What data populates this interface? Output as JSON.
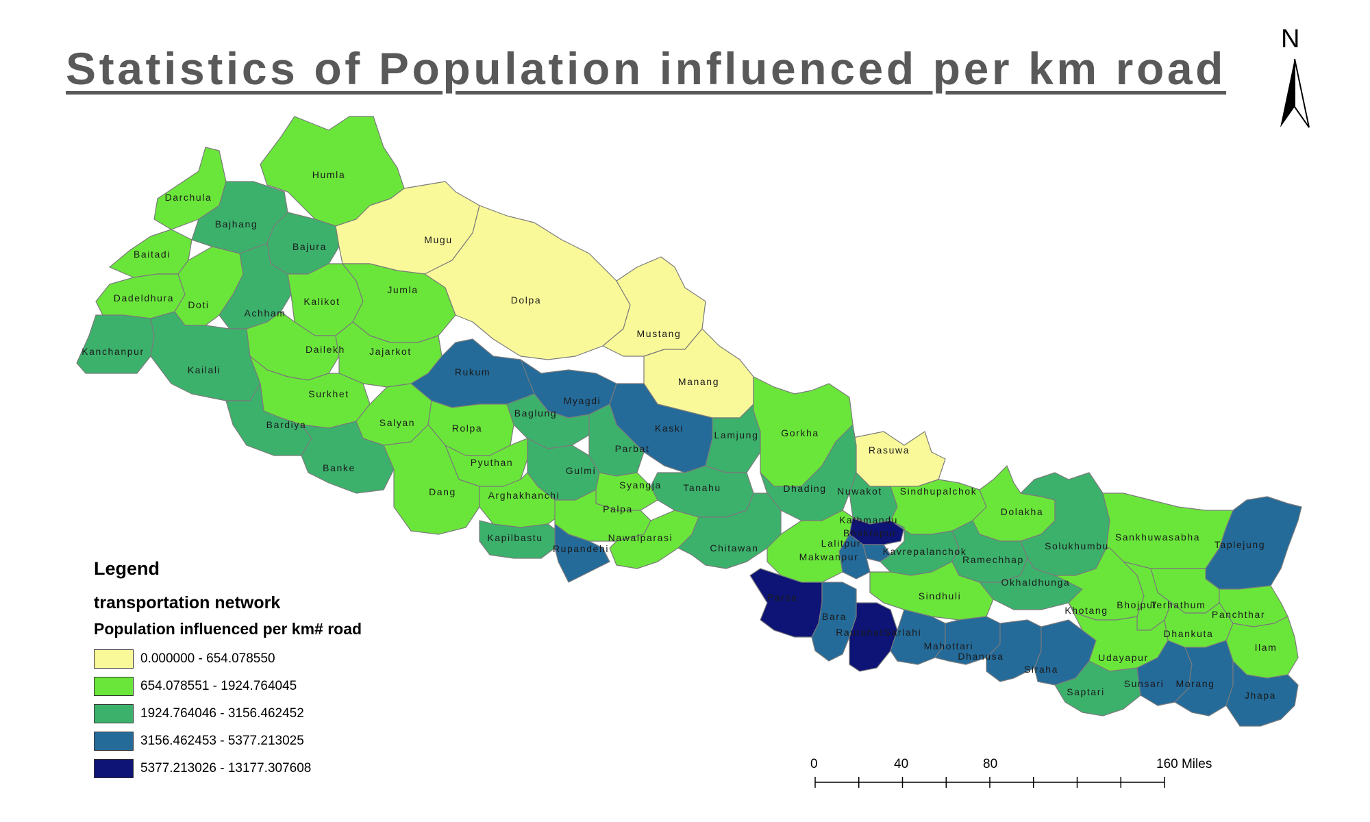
{
  "title": "Statistics of Population influenced per km road",
  "north_label": "N",
  "legend": {
    "heading": "Legend",
    "layer": "transportation network",
    "field": "Population influenced per km# road",
    "classes": [
      {
        "label": "0.000000 - 654.078550",
        "color": "#faf99a"
      },
      {
        "label": "654.078551 - 1924.764045",
        "color": "#6ae63a"
      },
      {
        "label": "1924.764046 - 3156.462452",
        "color": "#3cb16c"
      },
      {
        "label": "3156.462453 - 5377.213025",
        "color": "#246b9a"
      },
      {
        "label": "5377.213026 - 13177.307608",
        "color": "#0d1476"
      }
    ]
  },
  "scale": {
    "ticks": [
      "0",
      "40",
      "80",
      "160 Miles"
    ]
  },
  "districts": [
    {
      "name": "Humla",
      "cls": 1
    },
    {
      "name": "Darchula",
      "cls": 1
    },
    {
      "name": "Bajhang",
      "cls": 2
    },
    {
      "name": "Bajura",
      "cls": 2
    },
    {
      "name": "Mugu",
      "cls": 0
    },
    {
      "name": "Baitadi",
      "cls": 1
    },
    {
      "name": "Dadeldhura",
      "cls": 1
    },
    {
      "name": "Doti",
      "cls": 1
    },
    {
      "name": "Achham",
      "cls": 2
    },
    {
      "name": "Kalikot",
      "cls": 1
    },
    {
      "name": "Jumla",
      "cls": 1
    },
    {
      "name": "Dolpa",
      "cls": 0
    },
    {
      "name": "Kanchanpur",
      "cls": 2
    },
    {
      "name": "Kailali",
      "cls": 2
    },
    {
      "name": "Dailekh",
      "cls": 1
    },
    {
      "name": "Jajarkot",
      "cls": 1
    },
    {
      "name": "Mustang",
      "cls": 0
    },
    {
      "name": "Surkhet",
      "cls": 1
    },
    {
      "name": "Rukum",
      "cls": 3
    },
    {
      "name": "Manang",
      "cls": 0
    },
    {
      "name": "Bardiya",
      "cls": 2
    },
    {
      "name": "Salyan",
      "cls": 1
    },
    {
      "name": "Myagdi",
      "cls": 3
    },
    {
      "name": "Baglung",
      "cls": 2
    },
    {
      "name": "Rolpa",
      "cls": 1
    },
    {
      "name": "Kaski",
      "cls": 3
    },
    {
      "name": "Lamjung",
      "cls": 2
    },
    {
      "name": "Gorkha",
      "cls": 1
    },
    {
      "name": "Banke",
      "cls": 2
    },
    {
      "name": "Parbat",
      "cls": 2
    },
    {
      "name": "Rasuwa",
      "cls": 0
    },
    {
      "name": "Pyuthan",
      "cls": 1
    },
    {
      "name": "Gulmi",
      "cls": 2
    },
    {
      "name": "Dang",
      "cls": 1
    },
    {
      "name": "Arghakhanchi",
      "cls": 1
    },
    {
      "name": "Syangja",
      "cls": 1
    },
    {
      "name": "Tanahu",
      "cls": 2
    },
    {
      "name": "Dhading",
      "cls": 2
    },
    {
      "name": "Nuwakot",
      "cls": 2
    },
    {
      "name": "Sindhupalchok",
      "cls": 1
    },
    {
      "name": "Dolakha",
      "cls": 1
    },
    {
      "name": "Palpa",
      "cls": 1
    },
    {
      "name": "Kapilbastu",
      "cls": 2
    },
    {
      "name": "Rupandehi",
      "cls": 3
    },
    {
      "name": "Nawalparasi",
      "cls": 1
    },
    {
      "name": "Kathmandu",
      "cls": 4
    },
    {
      "name": "Bhaktapur",
      "cls": 3
    },
    {
      "name": "Lalitpur",
      "cls": 3
    },
    {
      "name": "Chitawan",
      "cls": 2
    },
    {
      "name": "Makwanpur",
      "cls": 1
    },
    {
      "name": "Kavrepalanchok",
      "cls": 2
    },
    {
      "name": "Ramechhap",
      "cls": 2
    },
    {
      "name": "Solukhumbu",
      "cls": 2
    },
    {
      "name": "Sankhuwasabha",
      "cls": 1
    },
    {
      "name": "Taplejung",
      "cls": 3
    },
    {
      "name": "Okhaldhunga",
      "cls": 2
    },
    {
      "name": "Parsa",
      "cls": 4
    },
    {
      "name": "Sindhuli",
      "cls": 1
    },
    {
      "name": "Terhathum",
      "cls": 1
    },
    {
      "name": "Khotang",
      "cls": 1
    },
    {
      "name": "Bhojpur",
      "cls": 1
    },
    {
      "name": "Panchthar",
      "cls": 1
    },
    {
      "name": "Bara",
      "cls": 3
    },
    {
      "name": "Rautahat",
      "cls": 4
    },
    {
      "name": "Sarlahi",
      "cls": 3
    },
    {
      "name": "Mahottari",
      "cls": 3
    },
    {
      "name": "Dhankuta",
      "cls": 1
    },
    {
      "name": "Dhanusa",
      "cls": 3
    },
    {
      "name": "Ilam",
      "cls": 1
    },
    {
      "name": "Siraha",
      "cls": 3
    },
    {
      "name": "Udayapur",
      "cls": 1
    },
    {
      "name": "Sunsari",
      "cls": 3
    },
    {
      "name": "Morang",
      "cls": 3
    },
    {
      "name": "Jhapa",
      "cls": 3
    },
    {
      "name": "Saptari",
      "cls": 2
    }
  ]
}
